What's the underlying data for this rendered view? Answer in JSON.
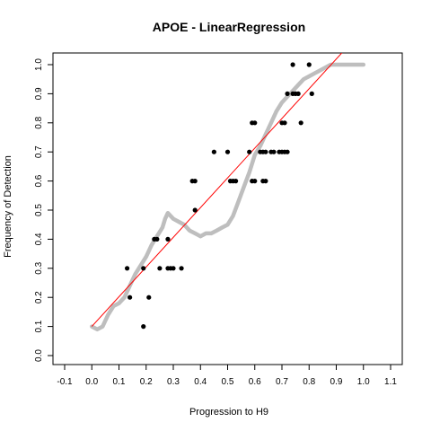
{
  "chart_data": {
    "type": "scatter",
    "title": "APOE - LinearRegression",
    "xlabel": "Progression to H9",
    "ylabel": "Frequency of Detection",
    "xlim": [
      -0.1,
      1.1
    ],
    "ylim": [
      0.0,
      1.0
    ],
    "x_ticks": [
      "-0.1",
      "0.0",
      "0.1",
      "0.2",
      "0.3",
      "0.4",
      "0.5",
      "0.6",
      "0.7",
      "0.8",
      "0.9",
      "1.0",
      "1.1"
    ],
    "y_ticks": [
      "0.0",
      "0.1",
      "0.2",
      "0.3",
      "0.4",
      "0.5",
      "0.6",
      "0.7",
      "0.8",
      "0.9",
      "1.0"
    ],
    "grid": false,
    "colors": {
      "points": "#000000",
      "smooth": "#bebebe",
      "fit": "#ff0000"
    },
    "points": [
      {
        "x": 0.13,
        "y": 0.3
      },
      {
        "x": 0.14,
        "y": 0.2
      },
      {
        "x": 0.19,
        "y": 0.1
      },
      {
        "x": 0.19,
        "y": 0.3
      },
      {
        "x": 0.21,
        "y": 0.2
      },
      {
        "x": 0.23,
        "y": 0.4
      },
      {
        "x": 0.24,
        "y": 0.4
      },
      {
        "x": 0.25,
        "y": 0.3
      },
      {
        "x": 0.28,
        "y": 0.3
      },
      {
        "x": 0.28,
        "y": 0.4
      },
      {
        "x": 0.29,
        "y": 0.3
      },
      {
        "x": 0.3,
        "y": 0.3
      },
      {
        "x": 0.33,
        "y": 0.3
      },
      {
        "x": 0.37,
        "y": 0.6
      },
      {
        "x": 0.38,
        "y": 0.6
      },
      {
        "x": 0.38,
        "y": 0.5
      },
      {
        "x": 0.45,
        "y": 0.7
      },
      {
        "x": 0.5,
        "y": 0.7
      },
      {
        "x": 0.51,
        "y": 0.6
      },
      {
        "x": 0.52,
        "y": 0.6
      },
      {
        "x": 0.53,
        "y": 0.6
      },
      {
        "x": 0.58,
        "y": 0.7
      },
      {
        "x": 0.59,
        "y": 0.8
      },
      {
        "x": 0.6,
        "y": 0.8
      },
      {
        "x": 0.59,
        "y": 0.6
      },
      {
        "x": 0.6,
        "y": 0.6
      },
      {
        "x": 0.62,
        "y": 0.7
      },
      {
        "x": 0.63,
        "y": 0.7
      },
      {
        "x": 0.63,
        "y": 0.6
      },
      {
        "x": 0.64,
        "y": 0.6
      },
      {
        "x": 0.64,
        "y": 0.7
      },
      {
        "x": 0.66,
        "y": 0.7
      },
      {
        "x": 0.67,
        "y": 0.7
      },
      {
        "x": 0.69,
        "y": 0.7
      },
      {
        "x": 0.7,
        "y": 0.7
      },
      {
        "x": 0.7,
        "y": 0.8
      },
      {
        "x": 0.71,
        "y": 0.8
      },
      {
        "x": 0.71,
        "y": 0.7
      },
      {
        "x": 0.72,
        "y": 0.7
      },
      {
        "x": 0.72,
        "y": 0.9
      },
      {
        "x": 0.74,
        "y": 0.9
      },
      {
        "x": 0.75,
        "y": 0.9
      },
      {
        "x": 0.74,
        "y": 1.0
      },
      {
        "x": 0.76,
        "y": 0.9
      },
      {
        "x": 0.77,
        "y": 0.8
      },
      {
        "x": 0.8,
        "y": 1.0
      },
      {
        "x": 0.81,
        "y": 0.9
      }
    ],
    "smooth_curve": [
      {
        "x": 0.0,
        "y": 0.1
      },
      {
        "x": 0.02,
        "y": 0.09
      },
      {
        "x": 0.04,
        "y": 0.1
      },
      {
        "x": 0.06,
        "y": 0.14
      },
      {
        "x": 0.08,
        "y": 0.17
      },
      {
        "x": 0.1,
        "y": 0.18
      },
      {
        "x": 0.12,
        "y": 0.2
      },
      {
        "x": 0.14,
        "y": 0.24
      },
      {
        "x": 0.16,
        "y": 0.28
      },
      {
        "x": 0.18,
        "y": 0.31
      },
      {
        "x": 0.2,
        "y": 0.34
      },
      {
        "x": 0.22,
        "y": 0.38
      },
      {
        "x": 0.24,
        "y": 0.41
      },
      {
        "x": 0.26,
        "y": 0.44
      },
      {
        "x": 0.27,
        "y": 0.47
      },
      {
        "x": 0.28,
        "y": 0.49
      },
      {
        "x": 0.3,
        "y": 0.47
      },
      {
        "x": 0.32,
        "y": 0.46
      },
      {
        "x": 0.34,
        "y": 0.45
      },
      {
        "x": 0.36,
        "y": 0.43
      },
      {
        "x": 0.38,
        "y": 0.42
      },
      {
        "x": 0.4,
        "y": 0.41
      },
      {
        "x": 0.42,
        "y": 0.42
      },
      {
        "x": 0.44,
        "y": 0.42
      },
      {
        "x": 0.46,
        "y": 0.43
      },
      {
        "x": 0.48,
        "y": 0.44
      },
      {
        "x": 0.5,
        "y": 0.45
      },
      {
        "x": 0.52,
        "y": 0.48
      },
      {
        "x": 0.54,
        "y": 0.53
      },
      {
        "x": 0.56,
        "y": 0.58
      },
      {
        "x": 0.58,
        "y": 0.63
      },
      {
        "x": 0.6,
        "y": 0.69
      },
      {
        "x": 0.62,
        "y": 0.72
      },
      {
        "x": 0.64,
        "y": 0.76
      },
      {
        "x": 0.66,
        "y": 0.8
      },
      {
        "x": 0.68,
        "y": 0.84
      },
      {
        "x": 0.7,
        "y": 0.87
      },
      {
        "x": 0.72,
        "y": 0.89
      },
      {
        "x": 0.74,
        "y": 0.91
      },
      {
        "x": 0.76,
        "y": 0.93
      },
      {
        "x": 0.78,
        "y": 0.95
      },
      {
        "x": 0.8,
        "y": 0.96
      },
      {
        "x": 0.82,
        "y": 0.97
      },
      {
        "x": 0.84,
        "y": 0.98
      },
      {
        "x": 0.86,
        "y": 0.99
      },
      {
        "x": 0.88,
        "y": 1.0
      },
      {
        "x": 0.92,
        "y": 1.0
      },
      {
        "x": 0.96,
        "y": 1.0
      },
      {
        "x": 1.0,
        "y": 1.0
      }
    ],
    "fit_line": [
      {
        "x": 0.0,
        "y": 0.1
      },
      {
        "x": 0.93,
        "y": 1.05
      }
    ]
  }
}
